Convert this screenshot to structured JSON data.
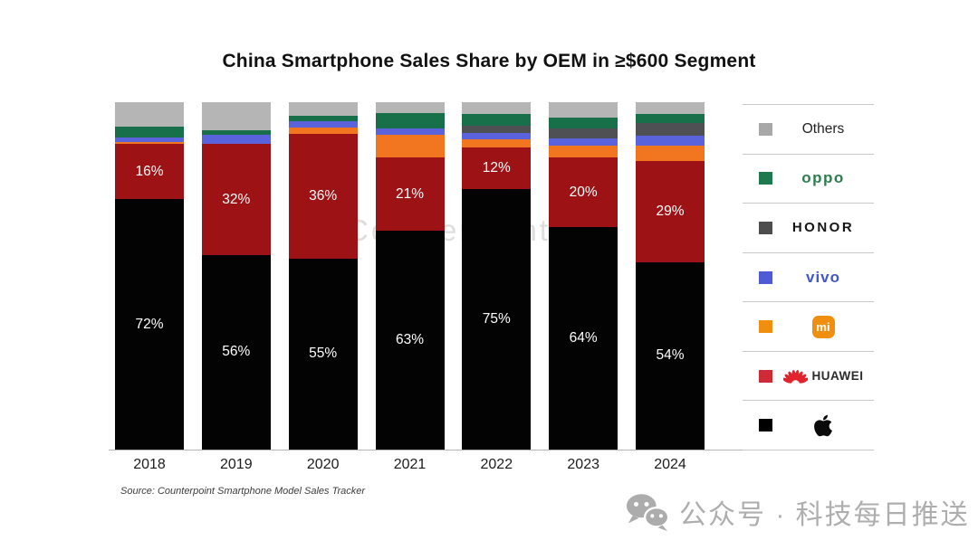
{
  "title": "China Smartphone Sales Share by OEM in ≥$600 Segment",
  "source": "Source: Counterpoint Smartphone Model Sales Tracker",
  "chart_watermark": "Counterpoint",
  "footer_watermark": {
    "icon": "wechat-icon",
    "text": "公众号 · 科技每日推送"
  },
  "chart_data": {
    "type": "bar",
    "stacked": true,
    "title": "China Smartphone Sales Share by OEM in ≥$600 Segment",
    "categories": [
      "2018",
      "2019",
      "2020",
      "2021",
      "2022",
      "2023",
      "2024"
    ],
    "series": [
      {
        "name": "Apple",
        "color": "#030303",
        "labeled": true,
        "values": [
          72,
          56,
          55,
          63,
          75,
          64,
          54
        ]
      },
      {
        "name": "HUAWEI",
        "color": "#9D1215",
        "labeled": true,
        "values": [
          16,
          32,
          36,
          21,
          12,
          20,
          29
        ]
      },
      {
        "name": "Mi",
        "color": "#F2751F",
        "labeled": false,
        "values": [
          0.6,
          0,
          1.6,
          6.5,
          2.3,
          3.6,
          4.4
        ]
      },
      {
        "name": "vivo",
        "color": "#5A63DB",
        "labeled": false,
        "values": [
          1.2,
          2.5,
          1.8,
          2,
          1.8,
          2.1,
          2.9
        ]
      },
      {
        "name": "HONOR",
        "color": "#4E5054",
        "labeled": false,
        "values": [
          0,
          0,
          0,
          0,
          2.1,
          2.7,
          3.6
        ]
      },
      {
        "name": "OPPO",
        "color": "#17704A",
        "labeled": false,
        "values": [
          3.2,
          1.5,
          1.8,
          4.5,
          3.3,
          3.1,
          2.8
        ]
      },
      {
        "name": "Others",
        "color": "#B5B5B5",
        "labeled": false,
        "values": [
          7,
          8,
          3.8,
          3,
          3.5,
          4.5,
          3.3
        ]
      }
    ],
    "value_suffix": "%",
    "ylim": [
      0,
      100
    ],
    "grid": false,
    "legend_position": "right",
    "xlabel": "",
    "ylabel": "",
    "source": "Source: Counterpoint Smartphone Model Sales Tracker"
  },
  "legend": {
    "items": [
      {
        "name": "Others",
        "label": "Others",
        "color": "#A8A8A8"
      },
      {
        "name": "OPPO",
        "label": "oppo",
        "color": "#1E7A4E",
        "wordmark_color": "#2E7D4E"
      },
      {
        "name": "HONOR",
        "label": "HONOR",
        "color": "#4D4D4D",
        "wordmark_color": "#151515"
      },
      {
        "name": "vivo",
        "label": "vivo",
        "color": "#4F5BD5",
        "wordmark_color": "#4157CE"
      },
      {
        "name": "Xiaomi",
        "label": "mi",
        "color": "#EF8E0F",
        "logo_color": "#EF8E0F"
      },
      {
        "name": "HUAWEI",
        "label": "HUAWEI",
        "color": "#CE2B37",
        "logo_color": "#E2232E"
      },
      {
        "name": "Apple",
        "label": "",
        "color": "#000000",
        "logo_color": "#000000"
      }
    ]
  }
}
